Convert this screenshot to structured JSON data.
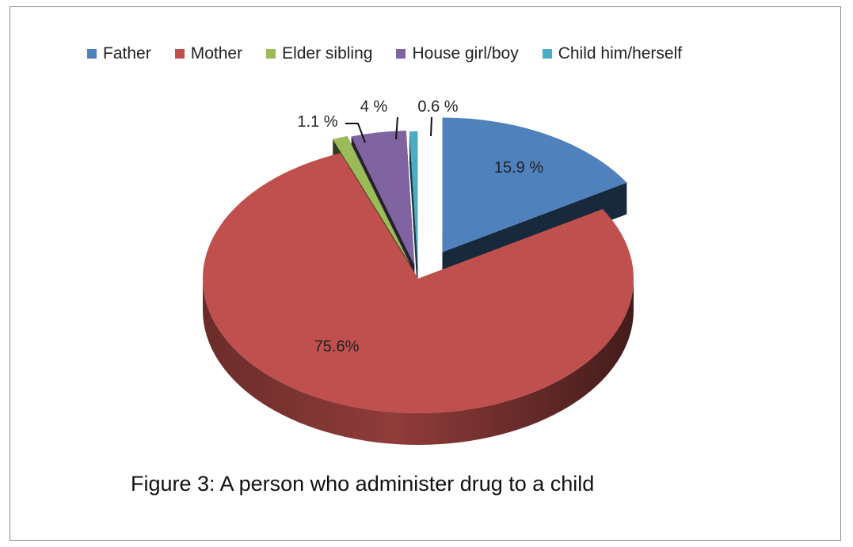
{
  "chart_data": {
    "type": "pie",
    "title": "",
    "categories": [
      "Father",
      "Mother",
      "Elder sibling",
      "House girl/boy",
      "Child him/herself"
    ],
    "values": [
      15.9,
      75.6,
      1.1,
      4,
      0.6
    ],
    "data_labels": [
      "15.9 %",
      "75.6%",
      "1.1 %",
      "4 %",
      "0.6 %"
    ],
    "colors": [
      "#4f81bd",
      "#c0504d",
      "#9bbb59",
      "#8064a2",
      "#4bacc6"
    ],
    "legend_placement": "top",
    "exploded": true,
    "three_d": true
  },
  "caption": "Figure 3: A person who administer drug to a child"
}
